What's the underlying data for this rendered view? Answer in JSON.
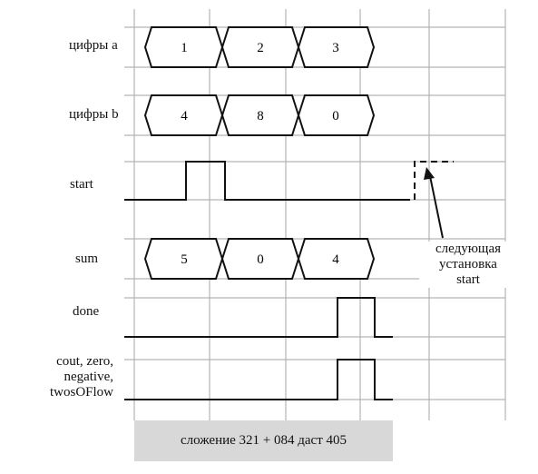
{
  "signals": {
    "a": {
      "label": "цифры a",
      "values": [
        "1",
        "2",
        "3"
      ]
    },
    "b": {
      "label": "цифры b",
      "values": [
        "4",
        "8",
        "0"
      ]
    },
    "start": {
      "label": "start"
    },
    "sum": {
      "label": "sum",
      "values": [
        "5",
        "0",
        "4"
      ]
    },
    "done": {
      "label": "done"
    },
    "flags": {
      "label_lines": [
        "cout, zero,",
        "negative,",
        "twosOFlow"
      ]
    }
  },
  "annotation": {
    "lines": [
      "следующая",
      "установка",
      "start"
    ]
  },
  "caption": "сложение 321 + 084 даст 405"
}
